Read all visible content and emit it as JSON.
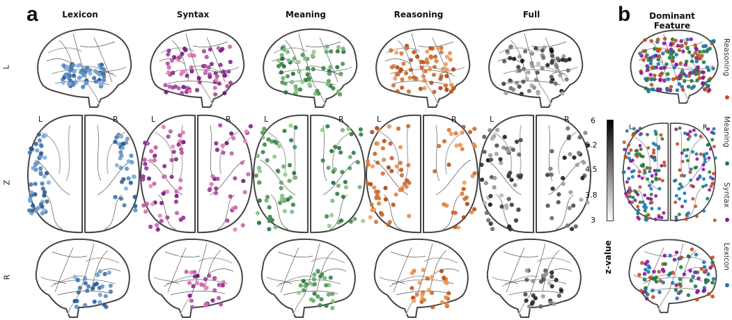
{
  "panels": {
    "a": {
      "letter": "a"
    },
    "b": {
      "letter": "b",
      "title": "Dominant Feature"
    }
  },
  "columns": [
    {
      "title": "Lexicon",
      "color": "#1f4e8c",
      "light": "#8ab6e0"
    },
    {
      "title": "Syntax",
      "color": "#6a0f7a",
      "light": "#f08bc0"
    },
    {
      "title": "Meaning",
      "color": "#1d6b35",
      "light": "#9ad08f"
    },
    {
      "title": "Reasoning",
      "color": "#a83d0a",
      "light": "#f4a160"
    },
    {
      "title": "Full",
      "color": "#111111",
      "light": "#bdbdbd"
    }
  ],
  "rows": [
    {
      "label": "L"
    },
    {
      "label": "Z"
    },
    {
      "label": "R"
    }
  ],
  "hemisphere_labels": {
    "left": "L",
    "right": "R"
  },
  "colorbar": {
    "label": "z-value",
    "ticks": [
      "6",
      "5.2",
      "4.5",
      "3.8",
      "3"
    ]
  },
  "legend": [
    {
      "label": "Reasoning",
      "color": "#c0501b"
    },
    {
      "label": "Meaning",
      "color": "#1e7d43"
    },
    {
      "label": "Syntax",
      "color": "#8b1a9a"
    },
    {
      "label": "Lexicon",
      "color": "#1f77b4"
    }
  ]
}
